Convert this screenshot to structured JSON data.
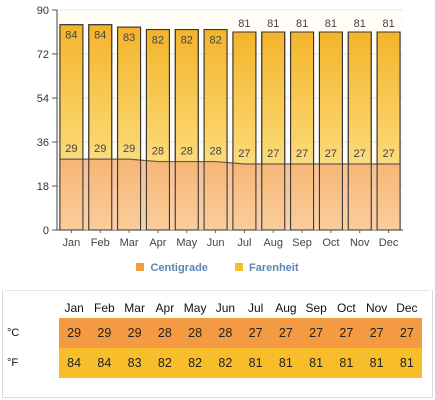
{
  "colors": {
    "centigrade": "#f39a43",
    "farenheit": "#f7bd2a",
    "legend_text": "#5c86b0"
  },
  "legend": {
    "centigrade_label": "Centigrade",
    "farenheit_label": "Farenheit"
  },
  "table": {
    "months": [
      "Jan",
      "Feb",
      "Mar",
      "Apr",
      "May",
      "Jun",
      "Jul",
      "Aug",
      "Sep",
      "Oct",
      "Nov",
      "Dec"
    ],
    "c_label": "°C",
    "f_label": "°F",
    "c_values": [
      29,
      29,
      29,
      28,
      28,
      28,
      27,
      27,
      27,
      27,
      27,
      27
    ],
    "f_values": [
      84,
      84,
      83,
      82,
      82,
      82,
      81,
      81,
      81,
      81,
      81,
      81
    ]
  },
  "chart_data": {
    "type": "bar",
    "categories": [
      "Jan",
      "Feb",
      "Mar",
      "Apr",
      "May",
      "Jun",
      "Jul",
      "Aug",
      "Sep",
      "Oct",
      "Nov",
      "Dec"
    ],
    "series": [
      {
        "name": "Farenheit",
        "type": "bar",
        "values": [
          84,
          84,
          83,
          82,
          82,
          82,
          81,
          81,
          81,
          81,
          81,
          81
        ]
      },
      {
        "name": "Centigrade",
        "type": "area",
        "values": [
          29,
          29,
          29,
          28,
          28,
          28,
          27,
          27,
          27,
          27,
          27,
          27
        ]
      }
    ],
    "yticks": [
      0,
      18,
      36,
      54,
      72,
      90
    ],
    "ylim": [
      0,
      90
    ],
    "grid": true,
    "legend": "bottom"
  }
}
